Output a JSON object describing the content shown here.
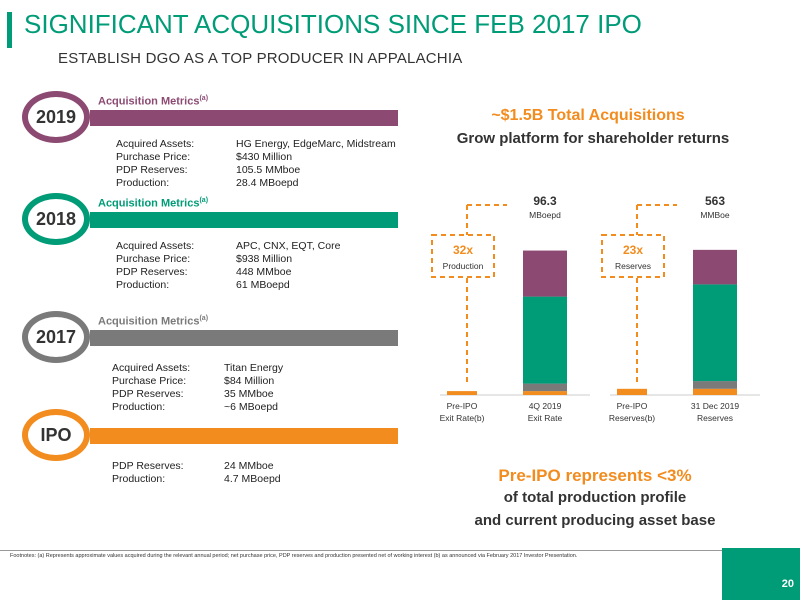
{
  "header": {
    "title": "SIGNIFICANT ACQUISITIONS SINCE FEB 2017 IPO",
    "subtitle": "ESTABLISH DGO AS A TOP PRODUCER IN APPALACHIA"
  },
  "colors": {
    "green": "#009B77",
    "purple": "#8C4A72",
    "gray": "#7A7A7A",
    "orange": "#F28C1F",
    "dark_gray": "#333333"
  },
  "timeline": [
    {
      "year": "2019",
      "color": "#8C4A72",
      "metrics_title": "Acquisition Metrics",
      "footnote_mark": "(a)",
      "rows": [
        {
          "label": "Acquired Assets:",
          "value": "HG Energy, EdgeMarc, Midstream"
        },
        {
          "label": "Purchase Price:",
          "value": "$430 Million"
        },
        {
          "label": "PDP Reserves:",
          "value": "105.5 MMboe"
        },
        {
          "label": "Production:",
          "value": "28.4 MBoepd"
        }
      ]
    },
    {
      "year": "2018",
      "color": "#009B77",
      "metrics_title": "Acquisition Metrics",
      "footnote_mark": "(a)",
      "rows": [
        {
          "label": "Acquired Assets:",
          "value": "APC, CNX, EQT, Core"
        },
        {
          "label": "Purchase Price:",
          "value": "$938 Million"
        },
        {
          "label": "PDP Reserves:",
          "value": "448 MMboe"
        },
        {
          "label": "Production:",
          "value": "61 MBoepd"
        }
      ]
    },
    {
      "year": "2017",
      "color": "#7A7A7A",
      "metrics_title": "Acquisition Metrics",
      "footnote_mark": "(a)",
      "rows": [
        {
          "label": "Acquired Assets:",
          "value": "Titan Energy"
        },
        {
          "label": "Purchase Price:",
          "value": "$84 Million"
        },
        {
          "label": "PDP Reserves:",
          "value": "35 MMboe"
        },
        {
          "label": "Production:",
          "value": "~6 MBoepd"
        }
      ]
    },
    {
      "year": "IPO",
      "color": "#F28C1F",
      "metrics_title": "",
      "footnote_mark": "",
      "rows": [
        {
          "label": "PDP Reserves:",
          "value": "24 MMboe"
        },
        {
          "label": "Production:",
          "value": "4.7 MBoepd"
        }
      ]
    }
  ],
  "right_panel": {
    "headline": "~$1.5B Total Acquisitions",
    "subheadline": "Grow platform for shareholder returns",
    "bottom_headline": "Pre-IPO represents <3%",
    "bottom_line1": "of total production profile",
    "bottom_line2": "and current producing asset base"
  },
  "chart_data": [
    {
      "type": "bar",
      "stacked": true,
      "categories": [
        "Pre-IPO Exit Rate(b)",
        "4Q 2019 Exit Rate"
      ],
      "category_lines": [
        [
          "Pre-IPO",
          "Exit Rate(b)"
        ],
        [
          "4Q 2019",
          "Exit Rate"
        ]
      ],
      "series": [
        {
          "color": "#F28C1F",
          "values": [
            2.6,
            2.6
          ]
        },
        {
          "color": "#7A7A7A",
          "values": [
            0,
            5.0
          ]
        },
        {
          "color": "#009B77",
          "values": [
            0,
            58.0
          ]
        },
        {
          "color": "#8C4A72",
          "values": [
            0,
            30.7
          ]
        }
      ],
      "total_label": "96.3",
      "total_unit": "MBoepd",
      "multiple": "32x",
      "multiple_label": "Production",
      "ylim": [
        0,
        110
      ]
    },
    {
      "type": "bar",
      "stacked": true,
      "categories": [
        "Pre-IPO Reserves(b)",
        "31 Dec 2019 Reserves"
      ],
      "category_lines": [
        [
          "Pre-IPO",
          "Reserves(b)"
        ],
        [
          "31 Dec 2019",
          "Reserves"
        ]
      ],
      "series": [
        {
          "color": "#F28C1F",
          "values": [
            24,
            24
          ]
        },
        {
          "color": "#7A7A7A",
          "values": [
            0,
            30
          ]
        },
        {
          "color": "#009B77",
          "values": [
            0,
            375
          ]
        },
        {
          "color": "#8C4A72",
          "values": [
            0,
            134
          ]
        }
      ],
      "total_label": "563",
      "total_unit": "MMBoe",
      "multiple": "23x",
      "multiple_label": "Reserves",
      "ylim": [
        0,
        640
      ]
    }
  ],
  "footer": {
    "footnote": "Footnotes: (a) Represents approximate values acquired during the relevant annual period;  net purchase price, PDP reserves and production presented net of working interest (b)  as announced via February 2017 Investor Presentation.",
    "page_number": "20"
  }
}
